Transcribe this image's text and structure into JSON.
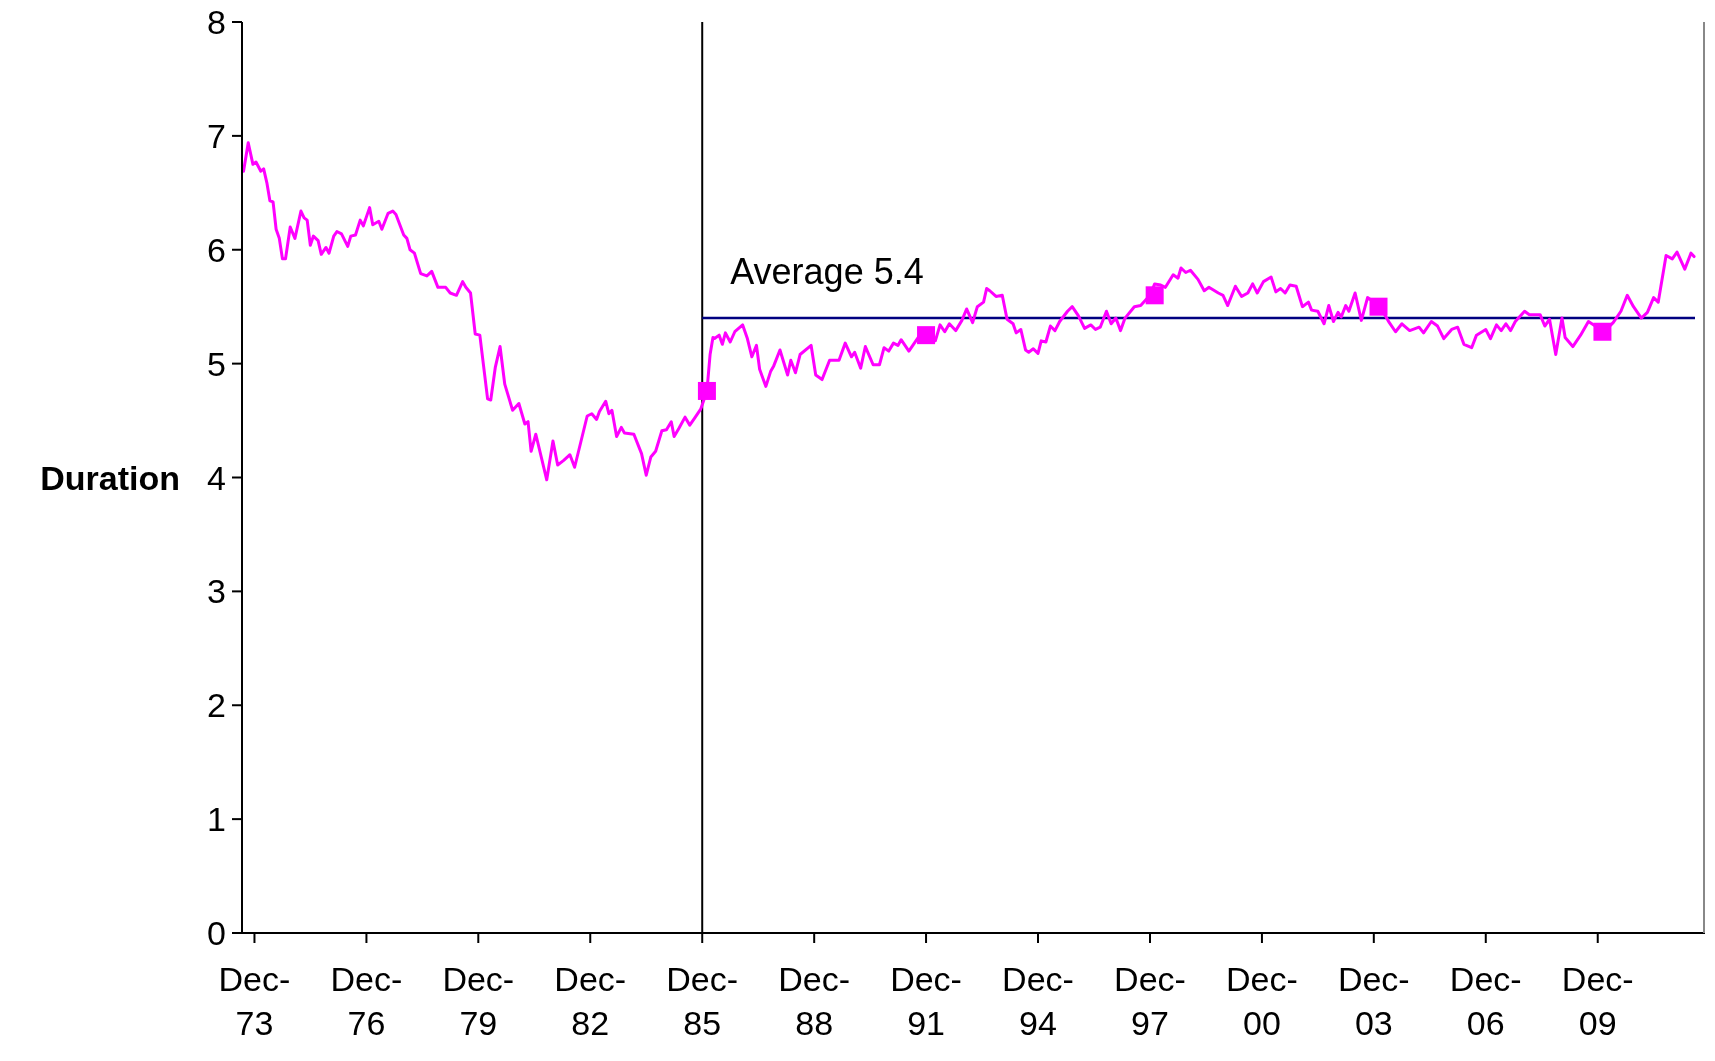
{
  "chart_data": {
    "type": "line",
    "ylabel": "Duration",
    "xlim": [
      "1973-08-01",
      "2012-10-16"
    ],
    "ylim": [
      0,
      8
    ],
    "yticks": [
      0,
      1,
      2,
      3,
      4,
      5,
      6,
      7,
      8
    ],
    "xticks": [
      {
        "value": "1973-12-01",
        "label": "Dec-73"
      },
      {
        "value": "1976-12-01",
        "label": "Dec-76"
      },
      {
        "value": "1979-12-01",
        "label": "Dec-79"
      },
      {
        "value": "1982-12-01",
        "label": "Dec-82"
      },
      {
        "value": "1985-12-01",
        "label": "Dec-85"
      },
      {
        "value": "1988-12-01",
        "label": "Dec-88"
      },
      {
        "value": "1991-12-01",
        "label": "Dec-91"
      },
      {
        "value": "1994-12-01",
        "label": "Dec-94"
      },
      {
        "value": "1997-12-01",
        "label": "Dec-97"
      },
      {
        "value": "2000-12-01",
        "label": "Dec-00"
      },
      {
        "value": "2003-12-01",
        "label": "Dec-03"
      },
      {
        "value": "2006-12-01",
        "label": "Dec-06"
      },
      {
        "value": "2009-12-01",
        "label": "Dec-09"
      }
    ],
    "grid": false,
    "ref_lines": [
      {
        "axis": "x",
        "value": "1985-12-01",
        "color": "#000000"
      },
      {
        "axis": "y",
        "value": 5.4,
        "label": "Average 5.4",
        "color": "#000080"
      }
    ],
    "series": [
      {
        "color": "#ff00ff",
        "marker": "none",
        "line_style": "solid",
        "x": [
          "1973-08-16",
          "1973-10-01",
          "1973-11-16",
          "1973-12-16",
          "1974-02-01",
          "1974-03-01",
          "1974-04-01",
          "1974-05-01",
          "1974-06-01",
          "1974-07-01",
          "1974-08-01",
          "1974-09-01",
          "1974-10-01",
          "1974-11-16",
          "1975-01-01",
          "1975-03-01",
          "1975-04-01",
          "1975-05-01",
          "1975-06-01",
          "1975-07-01",
          "1975-08-16",
          "1975-09-16",
          "1975-11-01",
          "1975-12-01",
          "1976-01-16",
          "1976-02-16",
          "1976-04-01",
          "1976-06-01",
          "1976-07-01",
          "1976-08-16",
          "1976-10-01",
          "1976-11-01",
          "1977-01-01",
          "1977-02-01",
          "1977-04-01",
          "1977-05-01",
          "1977-07-01",
          "1977-08-16",
          "1977-09-16",
          "1977-12-01",
          "1978-01-01",
          "1978-02-01",
          "1978-03-16",
          "1978-05-16",
          "1978-07-16",
          "1978-09-01",
          "1978-11-01",
          "1979-01-16",
          "1979-03-01",
          "1979-05-01",
          "1979-07-01",
          "1979-08-01",
          "1979-09-16",
          "1979-11-01",
          "1979-12-16",
          "1980-03-01",
          "1980-04-01",
          "1980-05-16",
          "1980-07-01",
          "1980-08-16",
          "1980-11-01",
          "1981-01-01",
          "1981-03-01",
          "1981-04-01",
          "1981-05-01",
          "1981-06-16",
          "1981-10-01",
          "1981-12-01",
          "1982-01-16",
          "1982-03-16",
          "1982-05-16",
          "1982-07-01",
          "1982-11-01",
          "1982-12-16",
          "1983-02-01",
          "1983-03-01",
          "1983-05-01",
          "1983-06-01",
          "1983-07-01",
          "1983-08-16",
          "1983-10-01",
          "1983-11-01",
          "1984-02-01",
          "1984-04-16",
          "1984-06-01",
          "1984-07-16",
          "1984-09-01",
          "1984-11-01",
          "1984-12-16",
          "1985-02-01",
          "1985-03-01",
          "1985-04-16",
          "1985-06-16",
          "1985-08-01",
          "1985-09-16",
          "1985-11-16",
          "1986-01-16",
          "1986-02-16",
          "1986-03-16",
          "1986-04-01",
          "1986-05-16",
          "1986-06-16",
          "1986-07-16",
          "1986-09-01",
          "1986-10-16",
          "1987-01-01",
          "1987-02-16",
          "1987-04-01",
          "1987-05-16",
          "1987-06-16",
          "1987-08-16",
          "1987-10-01",
          "1987-11-01",
          "1988-01-01",
          "1988-03-16",
          "1988-04-16",
          "1988-06-01",
          "1988-07-16",
          "1988-11-01",
          "1988-12-16",
          "1989-02-16",
          "1989-05-01",
          "1989-08-01",
          "1989-10-01",
          "1989-12-01",
          "1990-01-01",
          "1990-03-01",
          "1990-04-16",
          "1990-07-01",
          "1990-09-01",
          "1990-10-16",
          "1990-12-01",
          "1991-01-16",
          "1991-03-01",
          "1991-04-01",
          "1991-06-16",
          "1991-10-01",
          "1991-12-01",
          "1992-03-01",
          "1992-04-16",
          "1992-06-01",
          "1992-07-16",
          "1992-09-16",
          "1992-11-16",
          "1993-01-01",
          "1993-03-01",
          "1993-04-16",
          "1993-06-16",
          "1993-07-16",
          "1993-08-16",
          "1993-10-16",
          "1993-12-16",
          "1994-02-01",
          "1994-04-01",
          "1994-05-01",
          "1994-06-16",
          "1994-08-01",
          "1994-09-01",
          "1994-10-16",
          "1994-12-01",
          "1995-01-01",
          "1995-02-16",
          "1995-04-01",
          "1995-05-16",
          "1995-07-01",
          "1995-09-16",
          "1995-11-01",
          "1996-01-01",
          "1996-03-01",
          "1996-05-01",
          "1996-06-16",
          "1996-08-01",
          "1996-10-01",
          "1996-11-16",
          "1997-01-01",
          "1997-02-16",
          "1997-04-01",
          "1997-07-01",
          "1997-09-01",
          "1997-12-01",
          "1998-01-16",
          "1998-03-16",
          "1998-05-01",
          "1998-07-16",
          "1998-09-01",
          "1998-10-01",
          "1998-11-16",
          "1999-01-01",
          "1999-03-16",
          "1999-05-16",
          "1999-07-01",
          "1999-10-01",
          "1999-11-16",
          "2000-01-01",
          "2000-03-16",
          "2000-05-16",
          "2000-07-16",
          "2000-09-01",
          "2000-10-16",
          "2000-12-16",
          "2001-03-01",
          "2001-04-16",
          "2001-06-01",
          "2001-07-16",
          "2001-09-01",
          "2001-11-01",
          "2002-01-01",
          "2002-03-01",
          "2002-04-01",
          "2002-06-01",
          "2002-08-01",
          "2002-09-16",
          "2002-11-01",
          "2002-12-16",
          "2003-01-16",
          "2003-03-01",
          "2003-04-01",
          "2003-06-01",
          "2003-08-01",
          "2003-10-01",
          "2004-02-01",
          "2004-05-01",
          "2004-07-01",
          "2004-09-01",
          "2004-11-16",
          "2005-02-16",
          "2005-04-01",
          "2005-06-16",
          "2005-08-16",
          "2005-10-16",
          "2006-01-01",
          "2006-03-01",
          "2006-05-01",
          "2006-07-16",
          "2006-09-01",
          "2006-12-01",
          "2007-01-16",
          "2007-03-16",
          "2007-05-01",
          "2007-06-16",
          "2007-08-01",
          "2007-09-16",
          "2007-12-16",
          "2008-02-01",
          "2008-04-01",
          "2008-05-16",
          "2008-07-01",
          "2008-08-16",
          "2008-10-16",
          "2008-12-16",
          "2009-01-16",
          "2009-04-01",
          "2009-06-16",
          "2009-09-01",
          "2010-02-01",
          "2010-05-01",
          "2010-07-16",
          "2010-09-16",
          "2010-11-16",
          "2011-02-01",
          "2011-04-01",
          "2011-06-01",
          "2011-07-16",
          "2011-10-01",
          "2011-12-01",
          "2012-01-16",
          "2012-04-01",
          "2012-06-01",
          "2012-07-01"
        ],
        "values": [
          6.69,
          6.94,
          6.75,
          6.77,
          6.69,
          6.71,
          6.59,
          6.43,
          6.42,
          6.18,
          6.1,
          5.92,
          5.92,
          6.2,
          6.1,
          6.34,
          6.28,
          6.26,
          6.04,
          6.12,
          6.08,
          5.96,
          6.02,
          5.97,
          6.12,
          6.16,
          6.14,
          6.03,
          6.12,
          6.13,
          6.26,
          6.21,
          6.37,
          6.22,
          6.25,
          6.18,
          6.32,
          6.34,
          6.31,
          6.13,
          6.1,
          6.0,
          5.97,
          5.79,
          5.77,
          5.81,
          5.67,
          5.67,
          5.62,
          5.6,
          5.72,
          5.67,
          5.62,
          5.26,
          5.25,
          4.69,
          4.68,
          4.97,
          5.15,
          4.82,
          4.59,
          4.65,
          4.47,
          4.49,
          4.23,
          4.38,
          3.98,
          4.32,
          4.11,
          4.15,
          4.2,
          4.09,
          4.54,
          4.56,
          4.51,
          4.58,
          4.67,
          4.56,
          4.59,
          4.36,
          4.44,
          4.39,
          4.38,
          4.21,
          4.02,
          4.18,
          4.23,
          4.41,
          4.42,
          4.49,
          4.36,
          4.43,
          4.53,
          4.46,
          4.52,
          4.6,
          4.76,
          5.08,
          5.23,
          5.22,
          5.25,
          5.17,
          5.27,
          5.19,
          5.28,
          5.34,
          5.22,
          5.06,
          5.16,
          4.95,
          4.8,
          4.93,
          4.98,
          5.12,
          4.9,
          5.03,
          4.92,
          5.08,
          5.16,
          4.9,
          4.86,
          5.03,
          5.03,
          5.18,
          5.06,
          5.1,
          4.96,
          5.15,
          4.99,
          4.99,
          5.14,
          5.11,
          5.18,
          5.16,
          5.21,
          5.11,
          5.25,
          5.22,
          5.2,
          5.34,
          5.28,
          5.35,
          5.29,
          5.38,
          5.48,
          5.36,
          5.5,
          5.54,
          5.66,
          5.64,
          5.59,
          5.6,
          5.39,
          5.35,
          5.27,
          5.3,
          5.12,
          5.1,
          5.13,
          5.09,
          5.2,
          5.19,
          5.33,
          5.29,
          5.37,
          5.46,
          5.5,
          5.42,
          5.31,
          5.34,
          5.3,
          5.32,
          5.46,
          5.35,
          5.4,
          5.29,
          5.4,
          5.5,
          5.51,
          5.6,
          5.7,
          5.69,
          5.67,
          5.78,
          5.75,
          5.84,
          5.8,
          5.82,
          5.74,
          5.64,
          5.67,
          5.62,
          5.6,
          5.51,
          5.68,
          5.59,
          5.62,
          5.7,
          5.62,
          5.72,
          5.76,
          5.63,
          5.66,
          5.62,
          5.69,
          5.68,
          5.5,
          5.54,
          5.47,
          5.46,
          5.35,
          5.51,
          5.37,
          5.45,
          5.41,
          5.51,
          5.46,
          5.62,
          5.38,
          5.58,
          5.5,
          5.36,
          5.28,
          5.35,
          5.29,
          5.32,
          5.27,
          5.37,
          5.33,
          5.22,
          5.3,
          5.32,
          5.17,
          5.14,
          5.25,
          5.3,
          5.22,
          5.34,
          5.29,
          5.35,
          5.29,
          5.37,
          5.46,
          5.43,
          5.43,
          5.43,
          5.33,
          5.39,
          5.08,
          5.4,
          5.23,
          5.15,
          5.25,
          5.37,
          5.28,
          5.36,
          5.46,
          5.6,
          5.5,
          5.4,
          5.45,
          5.58,
          5.54,
          5.95,
          5.92,
          5.98,
          5.83,
          5.97,
          5.94
        ]
      },
      {
        "type": "scatter",
        "color": "#ff00ff",
        "marker": "square",
        "x": [
          "1986-01-16",
          "1991-12-01",
          "1998-01-16",
          "2004-01-16",
          "2010-01-16"
        ],
        "values": [
          4.76,
          5.25,
          5.6,
          5.5,
          5.28
        ]
      }
    ]
  }
}
